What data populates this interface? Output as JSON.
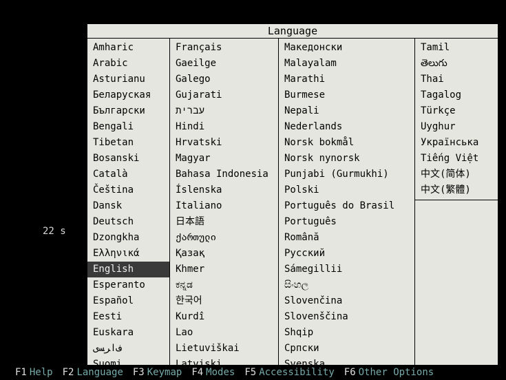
{
  "title": "Language",
  "timer": "22 s",
  "selected": "English",
  "colors": {
    "screen_bg": "#000000",
    "panel_bg": "#e6e6e0",
    "panel_border": "#000000",
    "text": "#000000",
    "selected_bg": "#3a3a3a",
    "selected_fg": "#f0f0f0",
    "fkey_text": "#e0e0e0",
    "fkey_label": "#77aaaa"
  },
  "columns": [
    [
      "Amharic",
      "Arabic",
      "Asturianu",
      "Беларуская",
      "Български",
      "Bengali",
      "Tibetan",
      "Bosanski",
      "Català",
      "Čeština",
      "Dansk",
      "Deutsch",
      "Dzongkha",
      "Ελληνικά",
      "English",
      "Esperanto",
      "Español",
      "Eesti",
      "Euskara",
      "ﻑﺍﺮﺴﻯ",
      "Suomi"
    ],
    [
      "Français",
      "Gaeilge",
      "Galego",
      "Gujarati",
      "עברית",
      "Hindi",
      "Hrvatski",
      "Magyar",
      "Bahasa Indonesia",
      "Íslenska",
      "Italiano",
      "日本語",
      "ქართული",
      "Қазақ",
      "Khmer",
      "ಕನ್ನಡ",
      "한국어",
      "Kurdî",
      "Lao",
      "Lietuviškai",
      "Latviski"
    ],
    [
      "Македонски",
      "Malayalam",
      "Marathi",
      "Burmese",
      "Nepali",
      "Nederlands",
      "Norsk bokmål",
      "Norsk nynorsk",
      "Punjabi (Gurmukhi)",
      "Polski",
      "Português do Brasil",
      "Português",
      "Română",
      "Русский",
      "Sámegillii",
      "සිංහල",
      "Slovenčina",
      "Slovenščina",
      "Shqip",
      "Српски",
      "Svenska"
    ],
    [
      "Tamil",
      "తెలుగు",
      "Thai",
      "Tagalog",
      "Türkçe",
      "Uyghur",
      "Українська",
      "Tiếng Việt",
      "中文(简体)",
      "中文(繁體)"
    ]
  ],
  "fkeys": [
    {
      "key": "F1",
      "label": "Help"
    },
    {
      "key": "F2",
      "label": "Language"
    },
    {
      "key": "F3",
      "label": "Keymap"
    },
    {
      "key": "F4",
      "label": "Modes"
    },
    {
      "key": "F5",
      "label": "Accessibility"
    },
    {
      "key": "F6",
      "label": "Other Options"
    }
  ]
}
